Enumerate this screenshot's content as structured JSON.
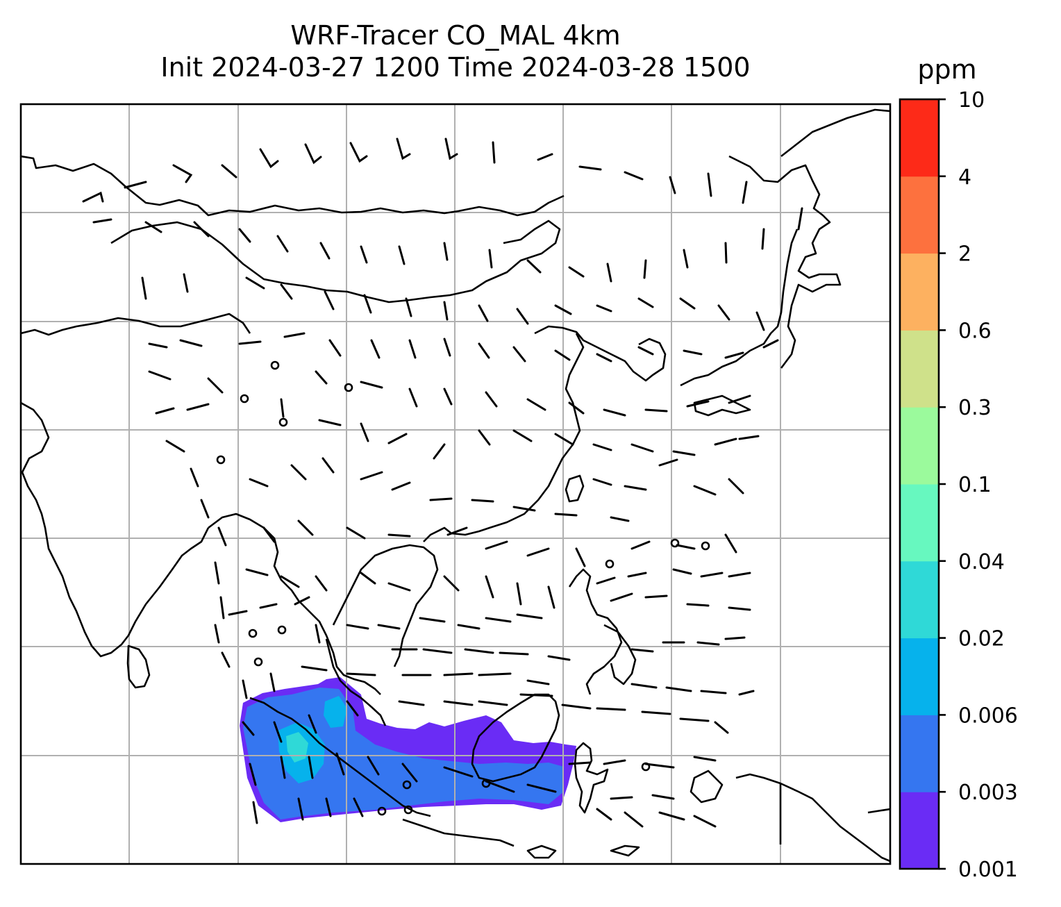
{
  "title": {
    "line1": "WRF-Tracer CO_MAL 4km",
    "line2": "Init 2024-03-27 1200 Time 2024-03-28 1500"
  },
  "colorbar": {
    "unit": "ppm",
    "levels": [
      "0.001",
      "0.003",
      "0.006",
      "0.02",
      "0.04",
      "0.1",
      "0.3",
      "0.6",
      "2",
      "4",
      "10"
    ],
    "colors": [
      "#6a2cf5",
      "#3576f0",
      "#06b2ec",
      "#2fd9d7",
      "#67f8bf",
      "#9bfa9c",
      "#cfe18a",
      "#fdb160",
      "#fd713e",
      "#fd2a18"
    ]
  },
  "map": {
    "projection": "gridded lat/lon",
    "gridlines": true,
    "features": [
      "coastlines",
      "country borders",
      "wind barbs",
      "CO_MAL tracer concentration"
    ]
  }
}
